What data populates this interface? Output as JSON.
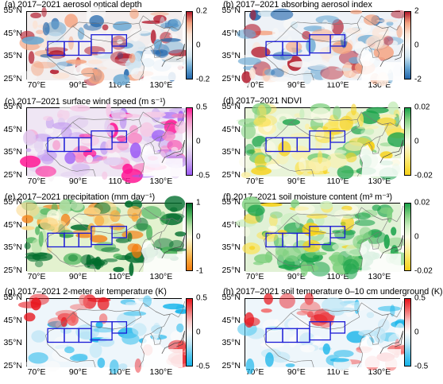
{
  "panels": [
    {
      "title": "(a) 2017–2021 aerosol optical depth",
      "cb": {
        "top": "0.2",
        "mid": "0",
        "bot": "-0.2"
      },
      "colors": [
        "#b2182b",
        "#f4a582",
        "#fbe4d6",
        "#f7f7f7",
        "#d1e5f0",
        "#6aa8d3",
        "#2166ac"
      ],
      "bg": "#f3eeee"
    },
    {
      "title": "(b) 2017–2021 absorbing aerosol index",
      "cb": {
        "top": "2",
        "mid": "0",
        "bot": "-2"
      },
      "colors": [
        "#b2182b",
        "#f4a582",
        "#fbe4d6",
        "#f7f7f7",
        "#d1e5f0",
        "#6aa8d3",
        "#2166ac"
      ],
      "bg": "#eef2f7"
    },
    {
      "title": "(c) 2017–2021 surface wind speed (m s⁻¹)",
      "cb": {
        "top": "0.5",
        "mid": "0",
        "bot": "-0.5"
      },
      "colors": [
        "#ff1493",
        "#f78cc6",
        "#f5cbe6",
        "#f7f3f7",
        "#e1cdf0",
        "#c29bf0",
        "#9b59f5"
      ],
      "bg": "#efe6f4"
    },
    {
      "title": "(d) 2017–2021 NDVI",
      "cb": {
        "top": "0.02",
        "mid": "0",
        "bot": "-0.02"
      },
      "colors": [
        "#1aa34a",
        "#7fd07f",
        "#cbeec0",
        "#fbfbe6",
        "#fbf0a8",
        "#fbe35a",
        "#f7d117"
      ],
      "bg": "#e9f4d9"
    },
    {
      "title": "(e) 2017–2021 precipitation (mm day⁻¹)",
      "cb": {
        "top": "1",
        "mid": "0",
        "bot": "-1"
      },
      "colors": [
        "#006d2c",
        "#4cb35c",
        "#b7e2a8",
        "#fbfbe0",
        "#fbd98a",
        "#f9a83a",
        "#f47c0e"
      ],
      "bg": "#e3f2cf"
    },
    {
      "title": "(f)  2017–2021 soil moisture content (m³ m⁻³)",
      "cb": {
        "top": "0.02",
        "mid": "0",
        "bot": "-0.02"
      },
      "colors": [
        "#1aa34a",
        "#7fd07f",
        "#cbeec0",
        "#fbfbe6",
        "#fbf0a8",
        "#fbe35a",
        "#f7d117"
      ],
      "bg": "#e1f1d6"
    },
    {
      "title": "(g) 2017–2021 2-meter air temperature (K)",
      "cb": {
        "top": "0.5",
        "mid": "0",
        "bot": "-0.5"
      },
      "colors": [
        "#e8141c",
        "#f26b6b",
        "#f9c6c6",
        "#fbfbfb",
        "#bfe6f6",
        "#5ccaf0",
        "#16b4ea"
      ],
      "bg": "#eef6fb"
    },
    {
      "title": "(h) 2017–2021 soil temperature 0–10 cm underground (K)",
      "cb": {
        "top": "0.5",
        "mid": "0",
        "bot": "-0.5"
      },
      "colors": [
        "#e8141c",
        "#f26b6b",
        "#f9c6c6",
        "#fbfbfb",
        "#bfe6f6",
        "#5ccaf0",
        "#16b4ea"
      ],
      "bg": "#eef6fb"
    }
  ],
  "axes": {
    "y": [
      "55°N",
      "45°N",
      "35°N",
      "25°N"
    ],
    "x": [
      "70°E",
      "90°E",
      "110°E",
      "130°E"
    ]
  }
}
